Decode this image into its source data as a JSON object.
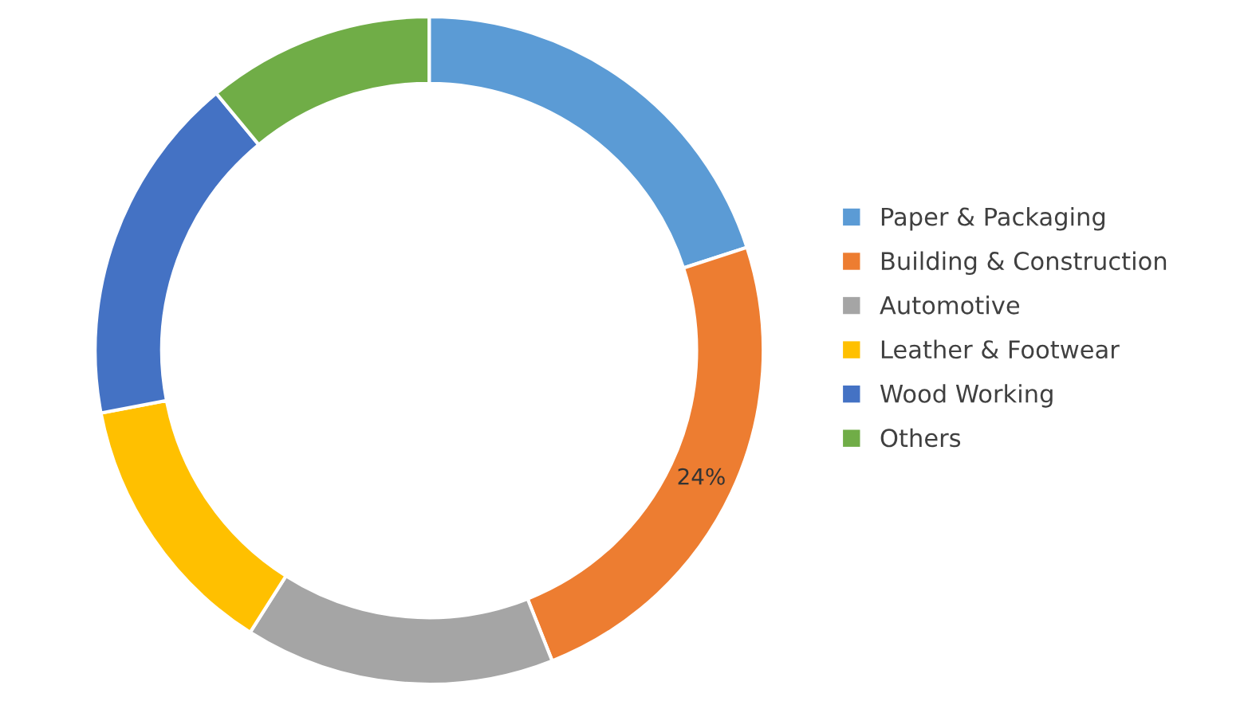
{
  "chart_data": {
    "type": "donut",
    "categories": [
      "Paper & Packaging",
      "Building & Construction",
      "Automotive",
      "Leather & Footwear",
      "Wood Working",
      "Others"
    ],
    "values": [
      20,
      24,
      15,
      13,
      17,
      11
    ],
    "colors": [
      "#5b9bd5",
      "#ed7d31",
      "#a5a5a5",
      "#ffc000",
      "#4472c4",
      "#70ad47"
    ],
    "value_labels": [
      null,
      "24%",
      null,
      null,
      null,
      null
    ],
    "legend": "right"
  }
}
